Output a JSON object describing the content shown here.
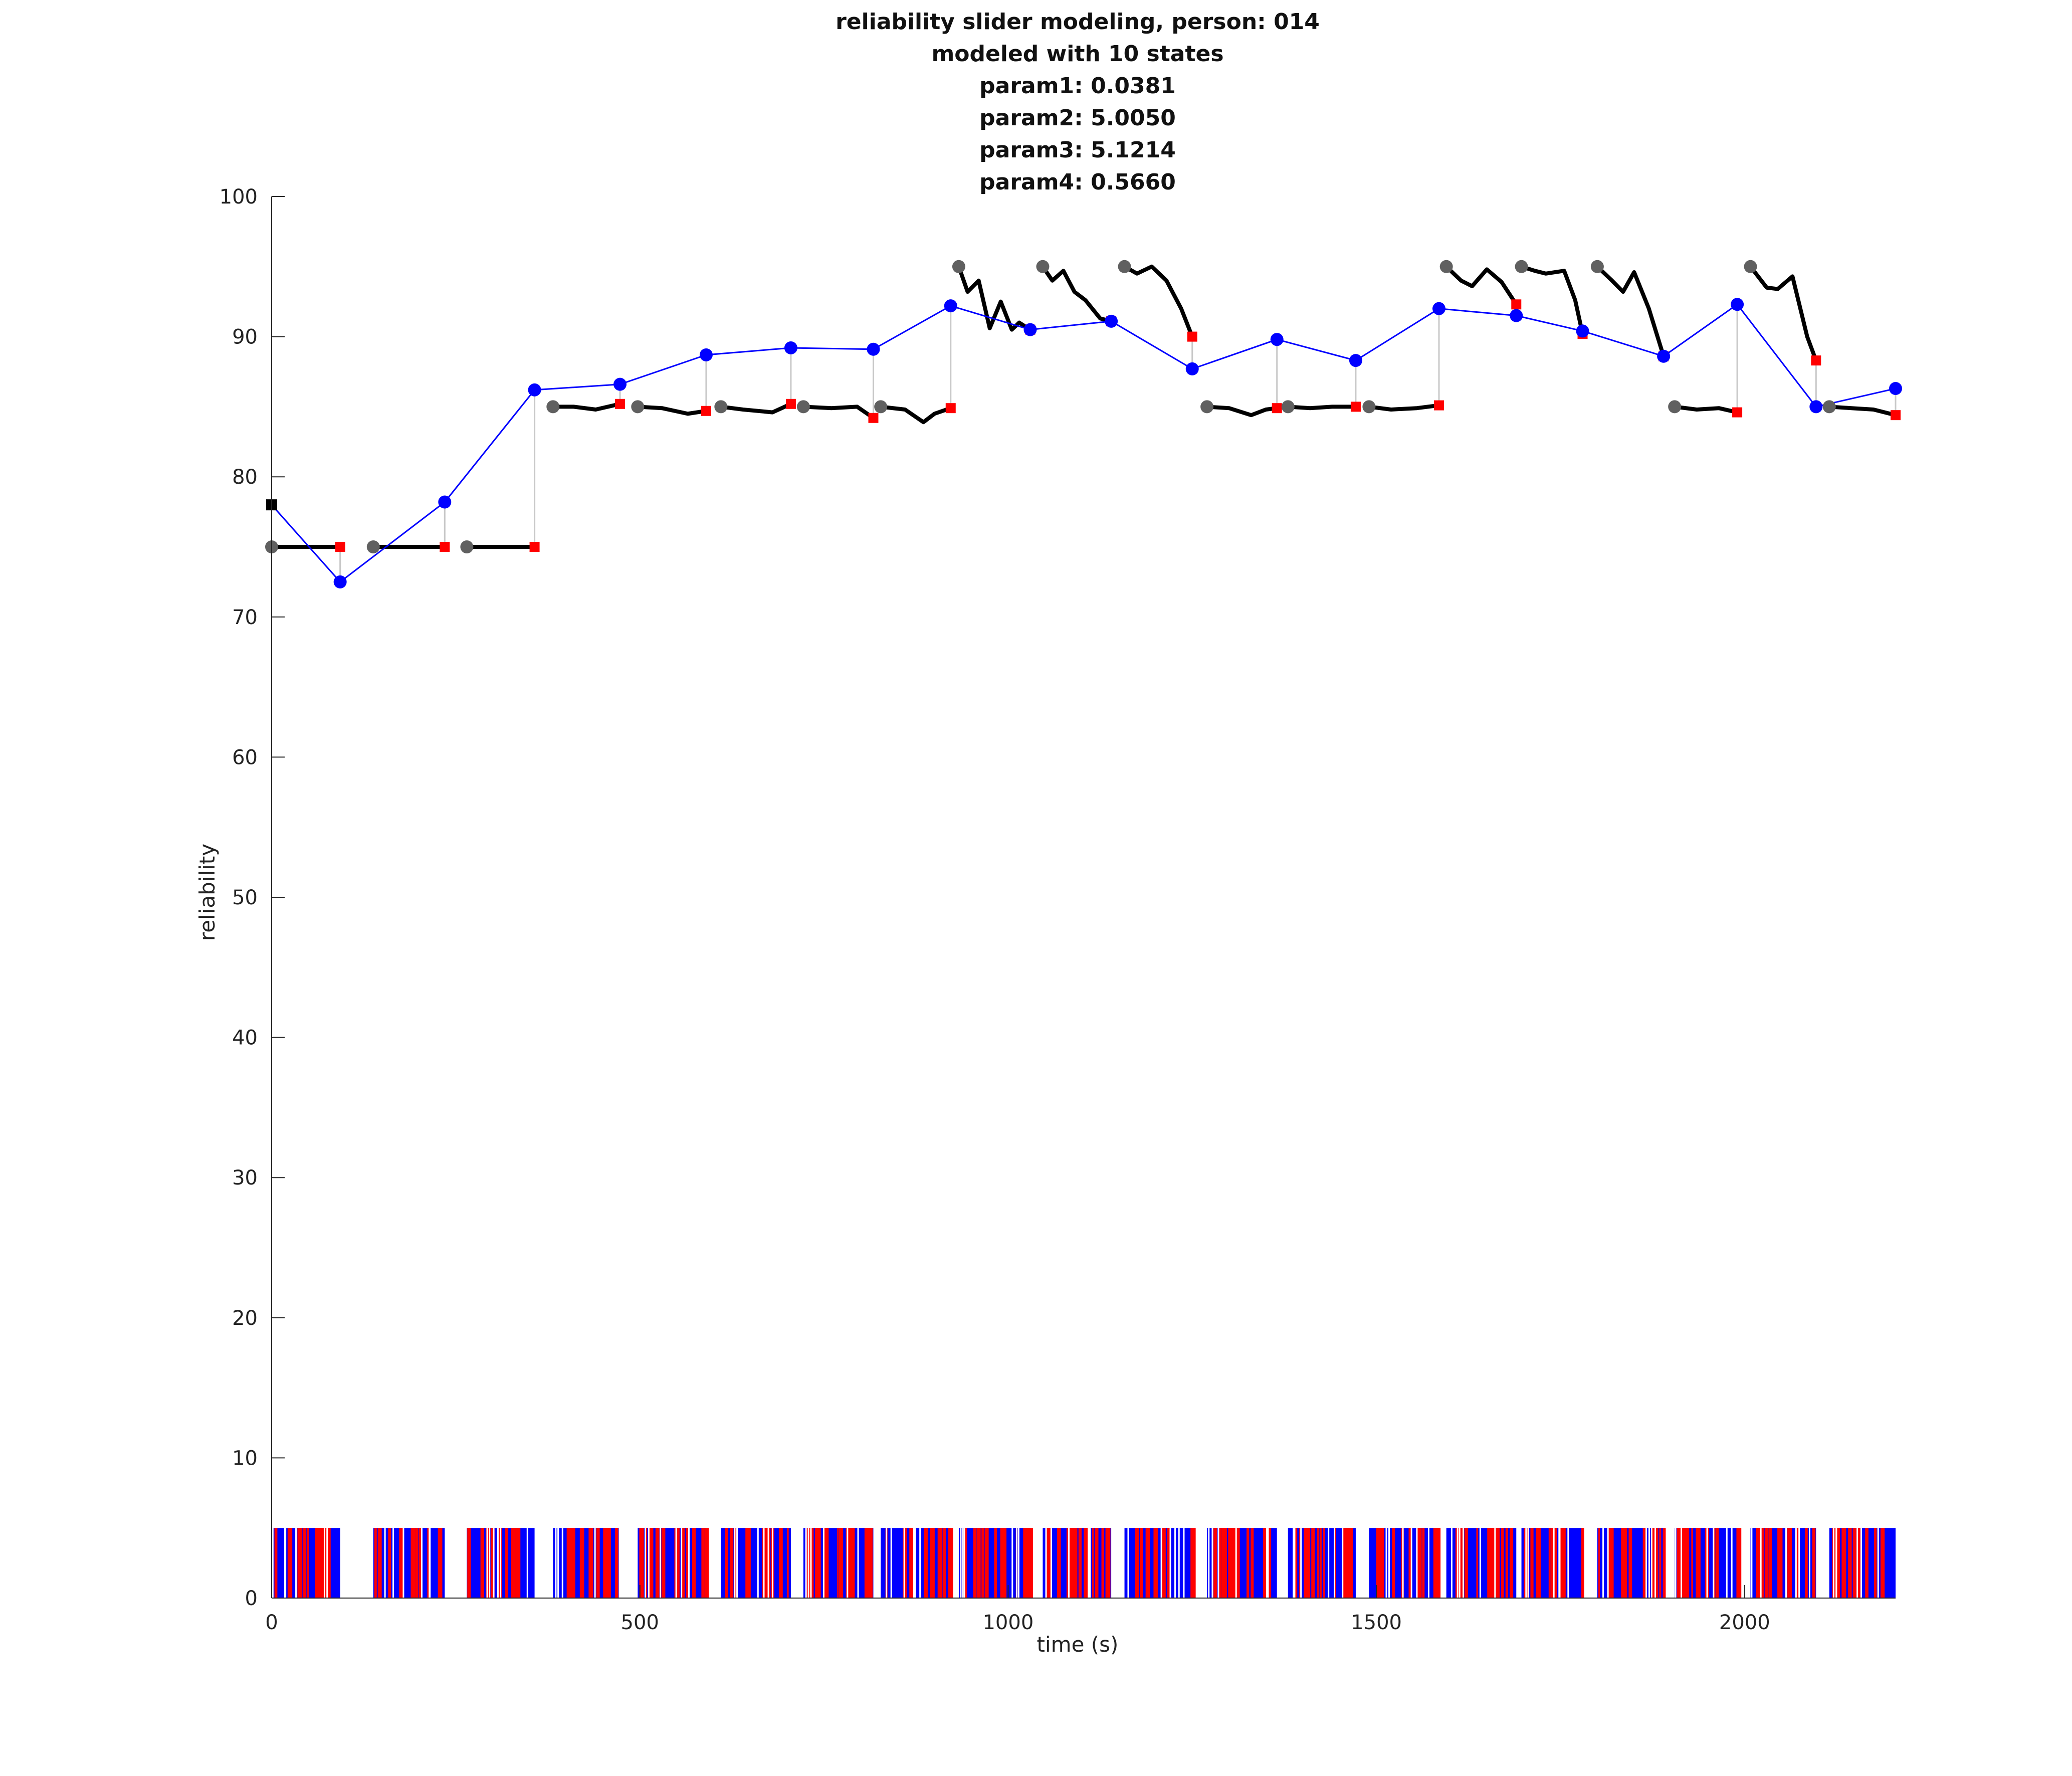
{
  "chart_data": {
    "type": "line",
    "title_lines": [
      "reliability slider modeling, person: 014",
      "modeled with 10 states",
      "param1: 0.0381",
      "param2: 5.0050",
      "param3: 5.1214",
      "param4: 0.5660"
    ],
    "xlabel": "time (s)",
    "ylabel": "reliability",
    "xlim": [
      0,
      2205
    ],
    "ylim": [
      0,
      100
    ],
    "xticks": [
      0,
      500,
      1000,
      1500,
      2000
    ],
    "yticks": [
      0,
      10,
      20,
      30,
      40,
      50,
      60,
      70,
      80,
      90,
      100
    ],
    "grid": false,
    "legend": "none",
    "colors": {
      "model": "#0000ff",
      "slider": "#000000",
      "start_marker": "#606060",
      "end_marker": "#ff0000",
      "connector": "#c8c8c8",
      "event_a": "#0000ff",
      "event_b": "#ff0000",
      "initial_marker": "#000000"
    },
    "initial_point": [
      0,
      78
    ],
    "model_series": {
      "name": "model",
      "x": [
        0,
        93,
        235,
        357,
        473,
        590,
        705,
        817,
        922,
        1030,
        1140,
        1250,
        1365,
        1472,
        1585,
        1690,
        1780,
        1890,
        1990,
        2097,
        2205
      ],
      "y": [
        78,
        72.5,
        78.2,
        86.2,
        86.6,
        88.7,
        89.2,
        89.1,
        92.2,
        90.5,
        91.1,
        87.7,
        89.8,
        88.3,
        92.0,
        91.5,
        90.4,
        88.6,
        92.3,
        85.0,
        86.3
      ]
    },
    "slider_segments": [
      {
        "x": [
          0,
          93
        ],
        "y": [
          75,
          75
        ]
      },
      {
        "x": [
          138,
          235
        ],
        "y": [
          75,
          75
        ]
      },
      {
        "x": [
          265,
          357
        ],
        "y": [
          75,
          75
        ]
      },
      {
        "x": [
          382,
          410,
          440,
          473
        ],
        "y": [
          85,
          85,
          84.8,
          85.2
        ]
      },
      {
        "x": [
          497,
          530,
          565,
          590
        ],
        "y": [
          85,
          84.9,
          84.5,
          84.7
        ]
      },
      {
        "x": [
          610,
          640,
          680,
          705
        ],
        "y": [
          85,
          84.8,
          84.6,
          85.2
        ]
      },
      {
        "x": [
          722,
          760,
          795,
          817
        ],
        "y": [
          85,
          84.9,
          85,
          84.2
        ]
      },
      {
        "x": [
          827,
          860,
          885,
          900,
          922
        ],
        "y": [
          85,
          84.8,
          83.9,
          84.5,
          84.9
        ]
      },
      {
        "x": [
          933,
          945,
          960,
          975,
          990,
          1005,
          1015,
          1030
        ],
        "y": [
          95,
          93.2,
          94.0,
          90.6,
          92.5,
          90.5,
          91.0,
          90.5
        ]
      },
      {
        "x": [
          1047,
          1060,
          1075,
          1090,
          1105,
          1125,
          1140
        ],
        "y": [
          95,
          94.0,
          94.7,
          93.2,
          92.6,
          91.3,
          91.1
        ]
      },
      {
        "x": [
          1158,
          1175,
          1195,
          1215,
          1235,
          1250
        ],
        "y": [
          95,
          94.5,
          95.0,
          94.0,
          92.0,
          90.0
        ]
      },
      {
        "x": [
          1270,
          1300,
          1330,
          1350,
          1365
        ],
        "y": [
          85,
          84.9,
          84.4,
          84.8,
          84.9
        ]
      },
      {
        "x": [
          1380,
          1410,
          1440,
          1472
        ],
        "y": [
          85,
          84.9,
          85,
          85.0
        ]
      },
      {
        "x": [
          1490,
          1520,
          1555,
          1585
        ],
        "y": [
          85,
          84.8,
          84.9,
          85.1
        ]
      },
      {
        "x": [
          1595,
          1615,
          1630,
          1650,
          1670,
          1690
        ],
        "y": [
          95,
          94.0,
          93.6,
          94.8,
          93.9,
          92.3
        ]
      },
      {
        "x": [
          1697,
          1715,
          1730,
          1755,
          1770,
          1780
        ],
        "y": [
          95,
          94.7,
          94.5,
          94.7,
          92.6,
          90.2
        ]
      },
      {
        "x": [
          1800,
          1820,
          1835,
          1850,
          1870,
          1890
        ],
        "y": [
          95,
          94.0,
          93.2,
          94.6,
          92.0,
          88.6
        ]
      },
      {
        "x": [
          1905,
          1935,
          1965,
          1990
        ],
        "y": [
          85,
          84.8,
          84.9,
          84.6
        ]
      },
      {
        "x": [
          2008,
          2030,
          2045,
          2065,
          2085,
          2097
        ],
        "y": [
          95,
          93.5,
          93.4,
          94.3,
          90.0,
          88.3
        ]
      },
      {
        "x": [
          2115,
          2145,
          2175,
          2205
        ],
        "y": [
          85,
          84.9,
          84.8,
          84.4
        ]
      }
    ],
    "event_bands": [
      {
        "x": [
          0,
          93
        ],
        "y": [
          0,
          5
        ]
      },
      {
        "x": [
          138,
          235
        ],
        "y": [
          0,
          5
        ]
      },
      {
        "x": [
          265,
          357
        ],
        "y": [
          0,
          5
        ]
      },
      {
        "x": [
          382,
          473
        ],
        "y": [
          0,
          5
        ]
      },
      {
        "x": [
          497,
          590
        ],
        "y": [
          0,
          5
        ]
      },
      {
        "x": [
          610,
          705
        ],
        "y": [
          0,
          5
        ]
      },
      {
        "x": [
          722,
          817
        ],
        "y": [
          0,
          5
        ]
      },
      {
        "x": [
          827,
          922
        ],
        "y": [
          0,
          5
        ]
      },
      {
        "x": [
          933,
          1030
        ],
        "y": [
          0,
          5
        ]
      },
      {
        "x": [
          1047,
          1140
        ],
        "y": [
          0,
          5
        ]
      },
      {
        "x": [
          1158,
          1250
        ],
        "y": [
          0,
          5
        ]
      },
      {
        "x": [
          1270,
          1365
        ],
        "y": [
          0,
          5
        ]
      },
      {
        "x": [
          1380,
          1472
        ],
        "y": [
          0,
          5
        ]
      },
      {
        "x": [
          1490,
          1585
        ],
        "y": [
          0,
          5
        ]
      },
      {
        "x": [
          1595,
          1690
        ],
        "y": [
          0,
          5
        ]
      },
      {
        "x": [
          1697,
          1780
        ],
        "y": [
          0,
          5
        ]
      },
      {
        "x": [
          1800,
          1890
        ],
        "y": [
          0,
          5
        ]
      },
      {
        "x": [
          1905,
          1990
        ],
        "y": [
          0,
          5
        ]
      },
      {
        "x": [
          2008,
          2097
        ],
        "y": [
          0,
          5
        ]
      },
      {
        "x": [
          2115,
          2205
        ],
        "y": [
          0,
          5
        ]
      }
    ]
  }
}
